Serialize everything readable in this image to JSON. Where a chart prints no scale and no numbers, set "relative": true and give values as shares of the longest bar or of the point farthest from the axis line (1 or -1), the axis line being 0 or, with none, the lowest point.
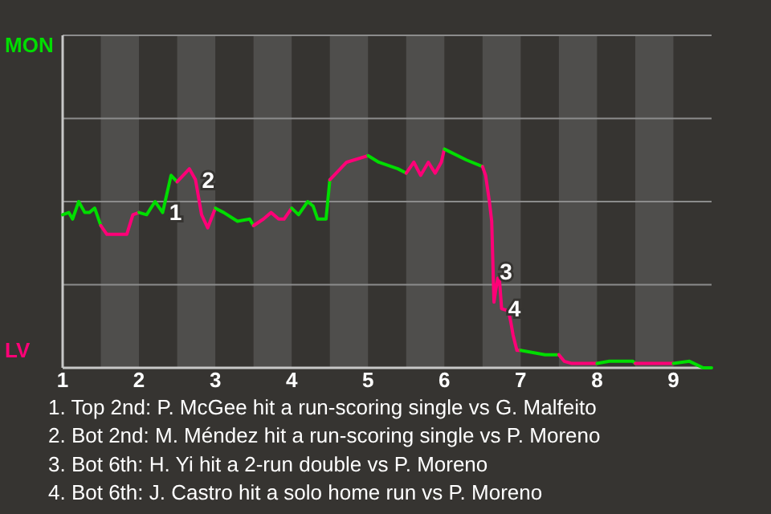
{
  "chart_data": {
    "type": "line",
    "relative": true,
    "marker": "none",
    "line_style": "solid",
    "ref_lines": [
      {
        "axis": "y",
        "value": 0.38,
        "label": null,
        "color": "#8c8c8c"
      },
      {
        "axis": "y",
        "value": 0.76,
        "label": null,
        "color": "#8c8c8c"
      },
      {
        "axis": "y",
        "value": 1.14,
        "label": null,
        "color": "#8c8c8c"
      },
      {
        "axis": "y",
        "value": 1.52,
        "label": null,
        "color": "#8c8c8c"
      }
    ],
    "xlim": [
      1,
      9.5
    ],
    "xticks": [
      1,
      2,
      3,
      4,
      5,
      6,
      7,
      8,
      9
    ],
    "bands": [
      {
        "axis": "x",
        "from": 1.5,
        "to": 2,
        "label": null,
        "color": "#4f4e4c"
      },
      {
        "axis": "x",
        "from": 2.5,
        "to": 3,
        "label": null,
        "color": "#4f4e4c"
      },
      {
        "axis": "x",
        "from": 3.5,
        "to": 4,
        "label": null,
        "color": "#4f4e4c"
      },
      {
        "axis": "x",
        "from": 4.5,
        "to": 5,
        "label": null,
        "color": "#4f4e4c"
      },
      {
        "axis": "x",
        "from": 5.5,
        "to": 6,
        "label": null,
        "color": "#4f4e4c"
      },
      {
        "axis": "x",
        "from": 6.5,
        "to": 7,
        "label": null,
        "color": "#4f4e4c"
      },
      {
        "axis": "x",
        "from": 7.5,
        "to": 8,
        "label": null,
        "color": "#4f4e4c"
      },
      {
        "axis": "x",
        "from": 8.5,
        "to": 9,
        "label": null,
        "color": "#4f4e4c"
      }
    ],
    "series": [
      {
        "color": "#00dd00",
        "x": [
          1,
          1.08,
          1.13,
          1.21,
          1.29,
          1.35,
          1.42,
          1.5
        ],
        "values": [
          0.7,
          0.71,
          0.68,
          0.76,
          0.71,
          0.71,
          0.73,
          0.65
        ]
      },
      {
        "color": "#ff0077",
        "x": [
          1.5,
          1.58,
          1.84,
          1.92,
          2
        ],
        "values": [
          0.65,
          0.61,
          0.61,
          0.7,
          0.71
        ]
      },
      {
        "color": "#00dd00",
        "x": [
          2,
          2.1,
          2.21,
          2.27,
          2.31,
          2.42,
          2.5
        ],
        "values": [
          0.71,
          0.7,
          0.76,
          0.73,
          0.71,
          0.88,
          0.85
        ]
      },
      {
        "color": "#ff0077",
        "x": [
          2.5,
          2.66,
          2.74,
          2.82,
          2.9,
          3
        ],
        "values": [
          0.85,
          0.91,
          0.86,
          0.7,
          0.64,
          0.73
        ]
      },
      {
        "color": "#00dd00",
        "x": [
          3,
          3.11,
          3.29,
          3.45,
          3.5
        ],
        "values": [
          0.73,
          0.71,
          0.67,
          0.68,
          0.65
        ]
      },
      {
        "color": "#ff0077",
        "x": [
          3.5,
          3.63,
          3.73,
          3.83,
          3.9,
          4
        ],
        "values": [
          0.65,
          0.68,
          0.71,
          0.68,
          0.68,
          0.73
        ]
      },
      {
        "color": "#00dd00",
        "x": [
          4,
          4.09,
          4.21,
          4.28,
          4.34,
          4.45,
          4.5
        ],
        "values": [
          0.73,
          0.7,
          0.76,
          0.74,
          0.68,
          0.68,
          0.86
        ]
      },
      {
        "color": "#ff0077",
        "x": [
          4.5,
          4.72,
          5
        ],
        "values": [
          0.86,
          0.94,
          0.97
        ]
      },
      {
        "color": "#00dd00",
        "x": [
          5,
          5.14,
          5.39,
          5.5
        ],
        "values": [
          0.97,
          0.94,
          0.91,
          0.89
        ]
      },
      {
        "color": "#ff0077",
        "x": [
          5.5,
          5.6,
          5.69,
          5.79,
          5.88,
          5.96,
          6
        ],
        "values": [
          0.89,
          0.94,
          0.88,
          0.94,
          0.89,
          0.94,
          1
        ]
      },
      {
        "color": "#00dd00",
        "x": [
          6,
          6.29,
          6.5
        ],
        "values": [
          1,
          0.95,
          0.92
        ]
      },
      {
        "color": "#ff0077",
        "x": [
          6.5,
          6.54,
          6.59,
          6.62,
          6.65,
          6.67,
          6.7,
          6.72,
          6.75,
          6.84,
          6.87,
          6.9,
          6.95,
          7
        ],
        "values": [
          0.92,
          0.88,
          0.76,
          0.67,
          0.3,
          0.35,
          0.41,
          0.41,
          0.27,
          0.26,
          0.21,
          0.15,
          0.08,
          0.08
        ]
      },
      {
        "color": "#00dd00",
        "x": [
          7,
          7.32,
          7.5
        ],
        "values": [
          0.08,
          0.06,
          0.06
        ]
      },
      {
        "color": "#ff0077",
        "x": [
          7.5,
          7.57,
          7.67,
          8
        ],
        "values": [
          0.06,
          0.03,
          0.02,
          0.02
        ]
      },
      {
        "color": "#00dd00",
        "x": [
          8,
          8.16,
          8.29,
          8.47,
          8.5
        ],
        "values": [
          0.02,
          0.03,
          0.03,
          0.03,
          0.02
        ]
      },
      {
        "color": "#ff0077",
        "x": [
          8.5,
          9
        ],
        "values": [
          0.02,
          0.02
        ]
      },
      {
        "color": "#00dd00",
        "x": [
          9,
          9.21,
          9.39,
          9.5
        ],
        "values": [
          0.02,
          0.03,
          0,
          0
        ]
      }
    ],
    "annotations": [
      "MON",
      "LV",
      {
        "text": "1",
        "x": 2.31,
        "y": 0.71
      },
      {
        "text": "2",
        "x": 2.74,
        "y": 0.86
      },
      {
        "text": "3",
        "x": 6.64,
        "y": 0.44
      },
      {
        "text": "4",
        "x": 6.75,
        "y": 0.27
      },
      "1. Top 2nd: P. McGee hit a run-scoring single vs G. Malfeito",
      "2. Bot 2nd: M. Méndez hit a run-scoring single vs P. Moreno",
      "3. Bot 6th: H. Yi hit a 2-run double vs P. Moreno",
      "4. Bot 6th: J. Castro hit a solo home run vs P. Moreno"
    ]
  }
}
